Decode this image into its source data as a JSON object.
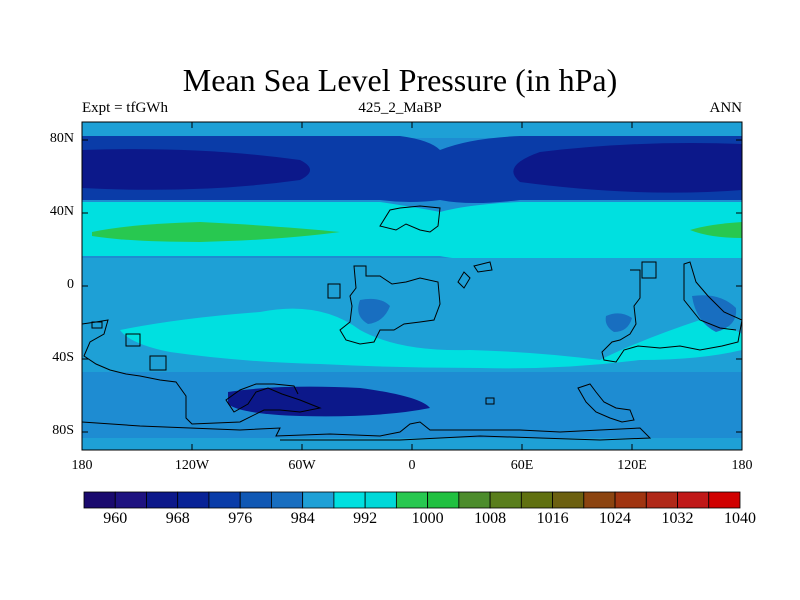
{
  "title": "Mean Sea Level Pressure (in hPa)",
  "subtitle_left": "Expt = tfGWh",
  "subtitle_center": "425_2_MaBP",
  "subtitle_right": "ANN",
  "map": {
    "lat_labels": [
      "80N",
      "40N",
      "0",
      "40S",
      "80S"
    ],
    "lon_labels": [
      "180",
      "120W",
      "60W",
      "0",
      "60E",
      "120E",
      "180"
    ],
    "lat_range": [
      -90,
      90
    ],
    "lon_range": [
      -180,
      180
    ]
  },
  "colorbar": {
    "labels": [
      "960",
      "968",
      "976",
      "984",
      "992",
      "1000",
      "1008",
      "1016",
      "1024",
      "1032",
      "1040"
    ],
    "colors": [
      "#1a0a6e",
      "#1e1280",
      "#0c188a",
      "#082296",
      "#0a3ca8",
      "#1058b4",
      "#186ec0",
      "#1ea0d6",
      "#00e0e0",
      "#00d8d8",
      "#28c850",
      "#20c040",
      "#4c8c2c",
      "#5a7e1c",
      "#607010",
      "#6c6010",
      "#8c4410",
      "#a03410",
      "#b02818",
      "#c01818",
      "#d00000"
    ]
  },
  "colors": {
    "deep_low": "#0c188a",
    "low": "#0a3ca8",
    "mid": "#1e8cd2",
    "mid_light": "#1ea0d6",
    "high": "#00e0e0",
    "higher": "#28c850",
    "coast": "#000000"
  }
}
